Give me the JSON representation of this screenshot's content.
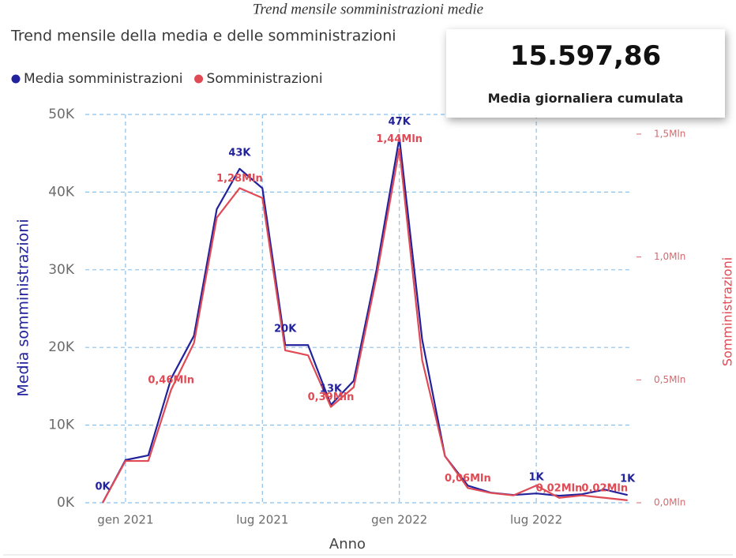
{
  "caption": "Trend mensile somministrazioni medie",
  "card": {
    "value": "15.597,86",
    "label": "Media giornaliera cumulata"
  },
  "chart_data": {
    "type": "line",
    "title": "Trend mensile della media e delle somministrazioni",
    "x_label": "Anno",
    "y_label": "Media somministrazioni",
    "y2_label": "Somministrazioni",
    "categories": [
      null,
      "gen 2021",
      null,
      null,
      null,
      null,
      null,
      "lug 2021",
      null,
      null,
      null,
      null,
      null,
      "gen 2022",
      null,
      null,
      null,
      null,
      null,
      "lug 2022",
      null,
      null,
      null,
      null
    ],
    "series": [
      {
        "name": "Media somministrazioni",
        "color": "#22229c",
        "values": [
          0,
          5500,
          6100,
          16000,
          21500,
          37800,
          43000,
          40500,
          20300,
          20300,
          12600,
          15700,
          30000,
          47000,
          21000,
          6000,
          2200,
          1300,
          1000,
          1200,
          900,
          1100,
          1700,
          1000
        ],
        "value_labels": [
          "0K",
          null,
          null,
          null,
          null,
          null,
          "43K",
          null,
          "20K",
          null,
          "13K",
          null,
          null,
          "47K",
          null,
          null,
          null,
          null,
          null,
          "1K",
          null,
          null,
          null,
          "1K"
        ]
      },
      {
        "name": "Somministrazioni",
        "color": "#e04a55",
        "axis": "y2",
        "values": [
          0,
          170000,
          170000,
          460000,
          650000,
          1160000,
          1280000,
          1240000,
          620000,
          600000,
          390000,
          470000,
          920000,
          1440000,
          580000,
          190000,
          60000,
          40000,
          30000,
          70000,
          20000,
          30000,
          20000,
          10000
        ],
        "value_labels": [
          null,
          null,
          null,
          "0,46Mln",
          null,
          null,
          "1,28Mln",
          null,
          null,
          null,
          "0,39Mln",
          null,
          null,
          "1,44Mln",
          null,
          null,
          "0,06Mln",
          null,
          null,
          null,
          "0,02Mln",
          null,
          "0,02Mln",
          null
        ]
      }
    ],
    "ylim": [
      0,
      50000
    ],
    "yticks": [
      {
        "value": 0,
        "label": "0K"
      },
      {
        "value": 10000,
        "label": "10K"
      },
      {
        "value": 20000,
        "label": "20K"
      },
      {
        "value": 30000,
        "label": "30K"
      },
      {
        "value": 40000,
        "label": "40K"
      },
      {
        "value": 50000,
        "label": "50K"
      }
    ],
    "y2lim": [
      0,
      1580000
    ],
    "y2ticks": [
      {
        "value": 0,
        "label": "0,0Mln"
      },
      {
        "value": 500000,
        "label": "0,5Mln"
      },
      {
        "value": 1000000,
        "label": "1,0Mln"
      },
      {
        "value": 1500000,
        "label": "1,5Mln"
      }
    ],
    "grid": true
  }
}
